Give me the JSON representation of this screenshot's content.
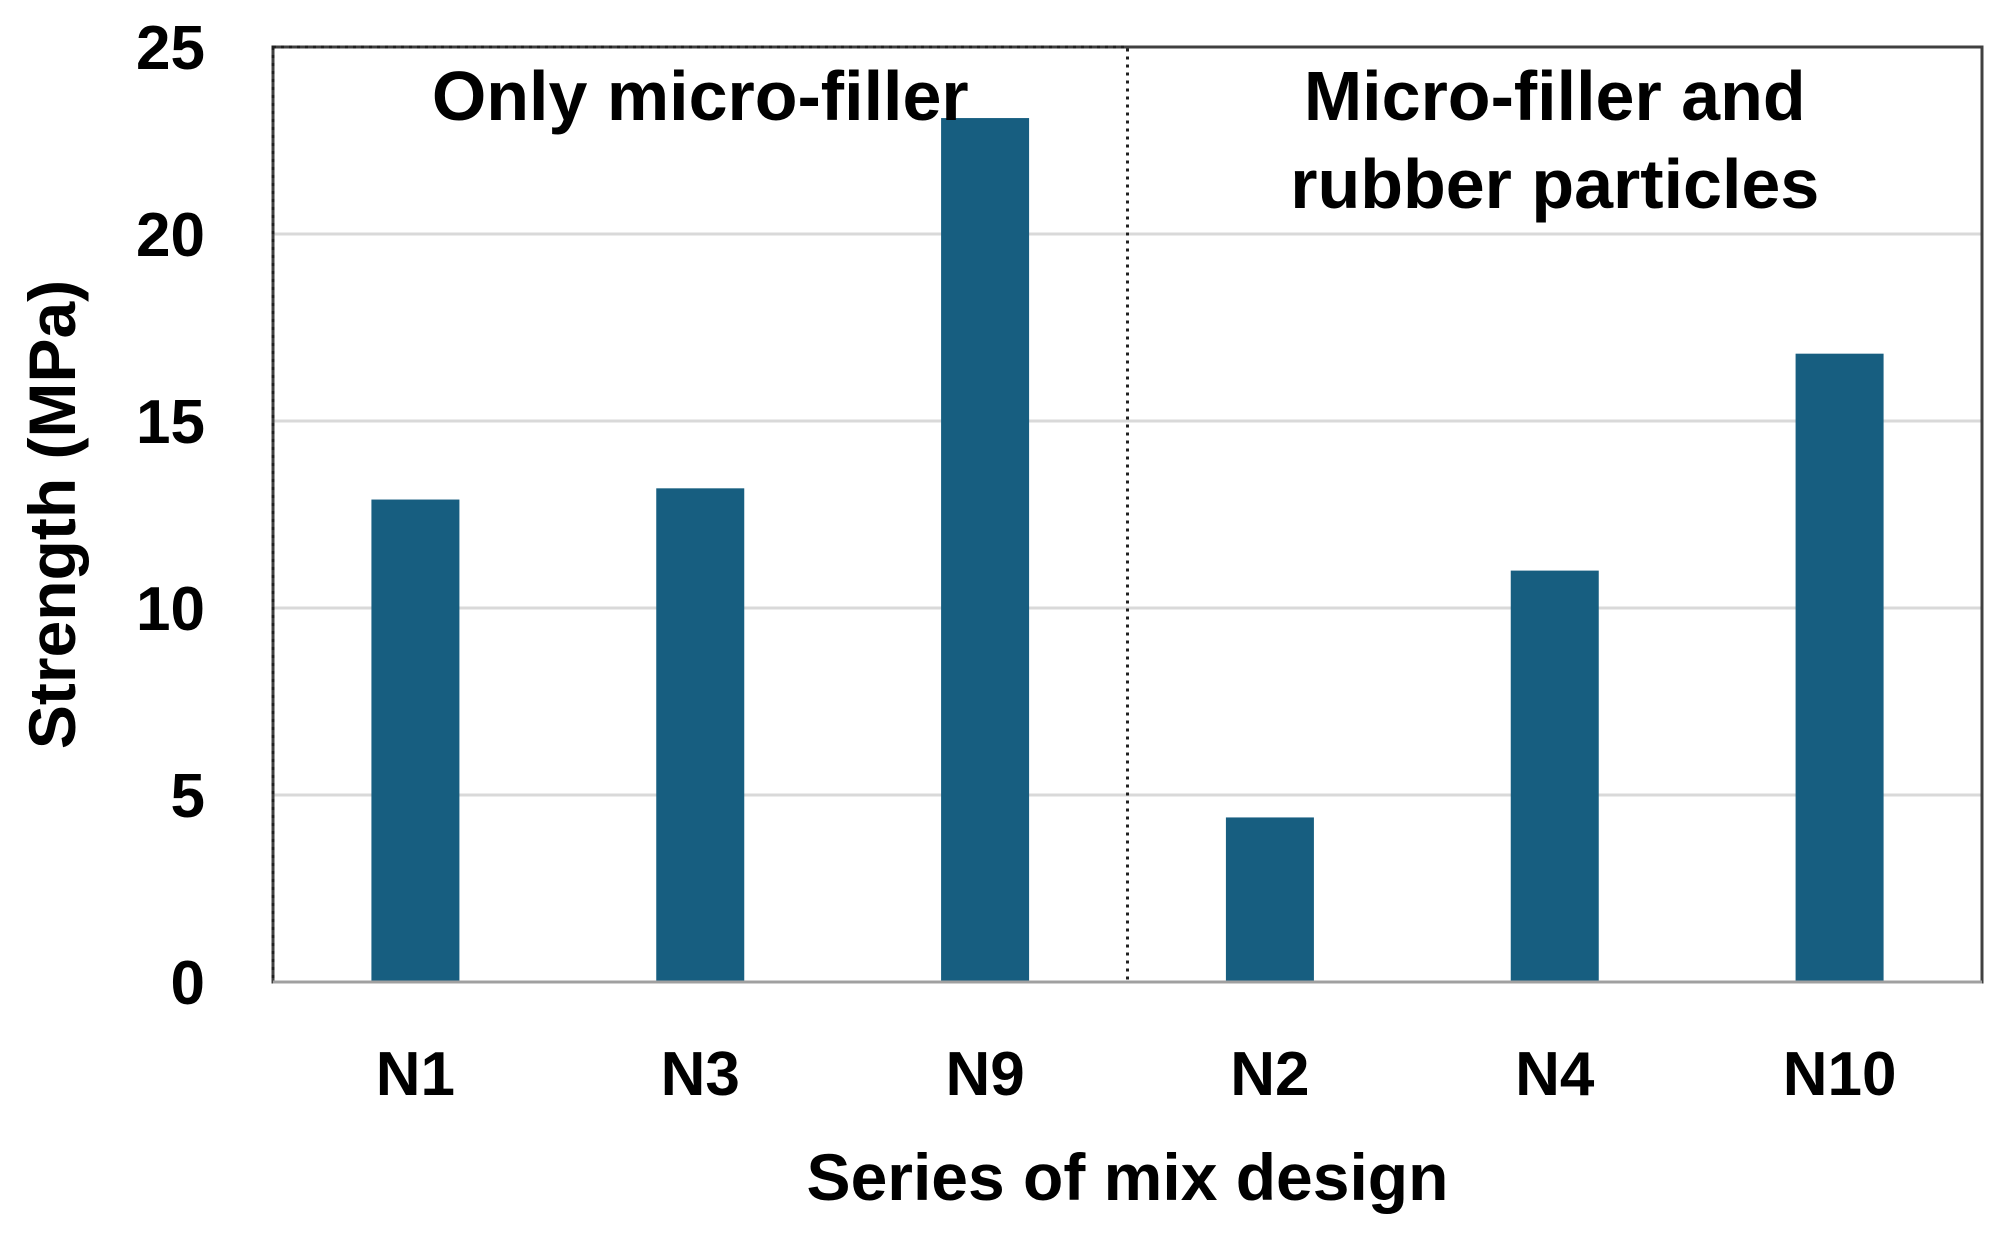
{
  "chart_data": {
    "type": "bar",
    "categories": [
      "N1",
      "N3",
      "N9",
      "N2",
      "N4",
      "N10"
    ],
    "values": [
      12.9,
      13.2,
      23.1,
      4.4,
      11.0,
      16.8
    ],
    "xlabel": "Series of mix design",
    "ylabel": "Strength (MPa)",
    "ylim": [
      0,
      25
    ],
    "yticks": [
      0,
      5,
      10,
      15,
      20,
      25
    ],
    "grid": true,
    "bar_color": "#175e80",
    "groups": [
      {
        "label_lines": [
          "Only micro-filler"
        ],
        "categories": [
          "N1",
          "N3",
          "N9"
        ],
        "border": "dotted"
      },
      {
        "label_lines": [
          "Micro-filler and",
          "rubber particles"
        ],
        "categories": [
          "N2",
          "N4",
          "N10"
        ],
        "border": "solid"
      }
    ]
  }
}
